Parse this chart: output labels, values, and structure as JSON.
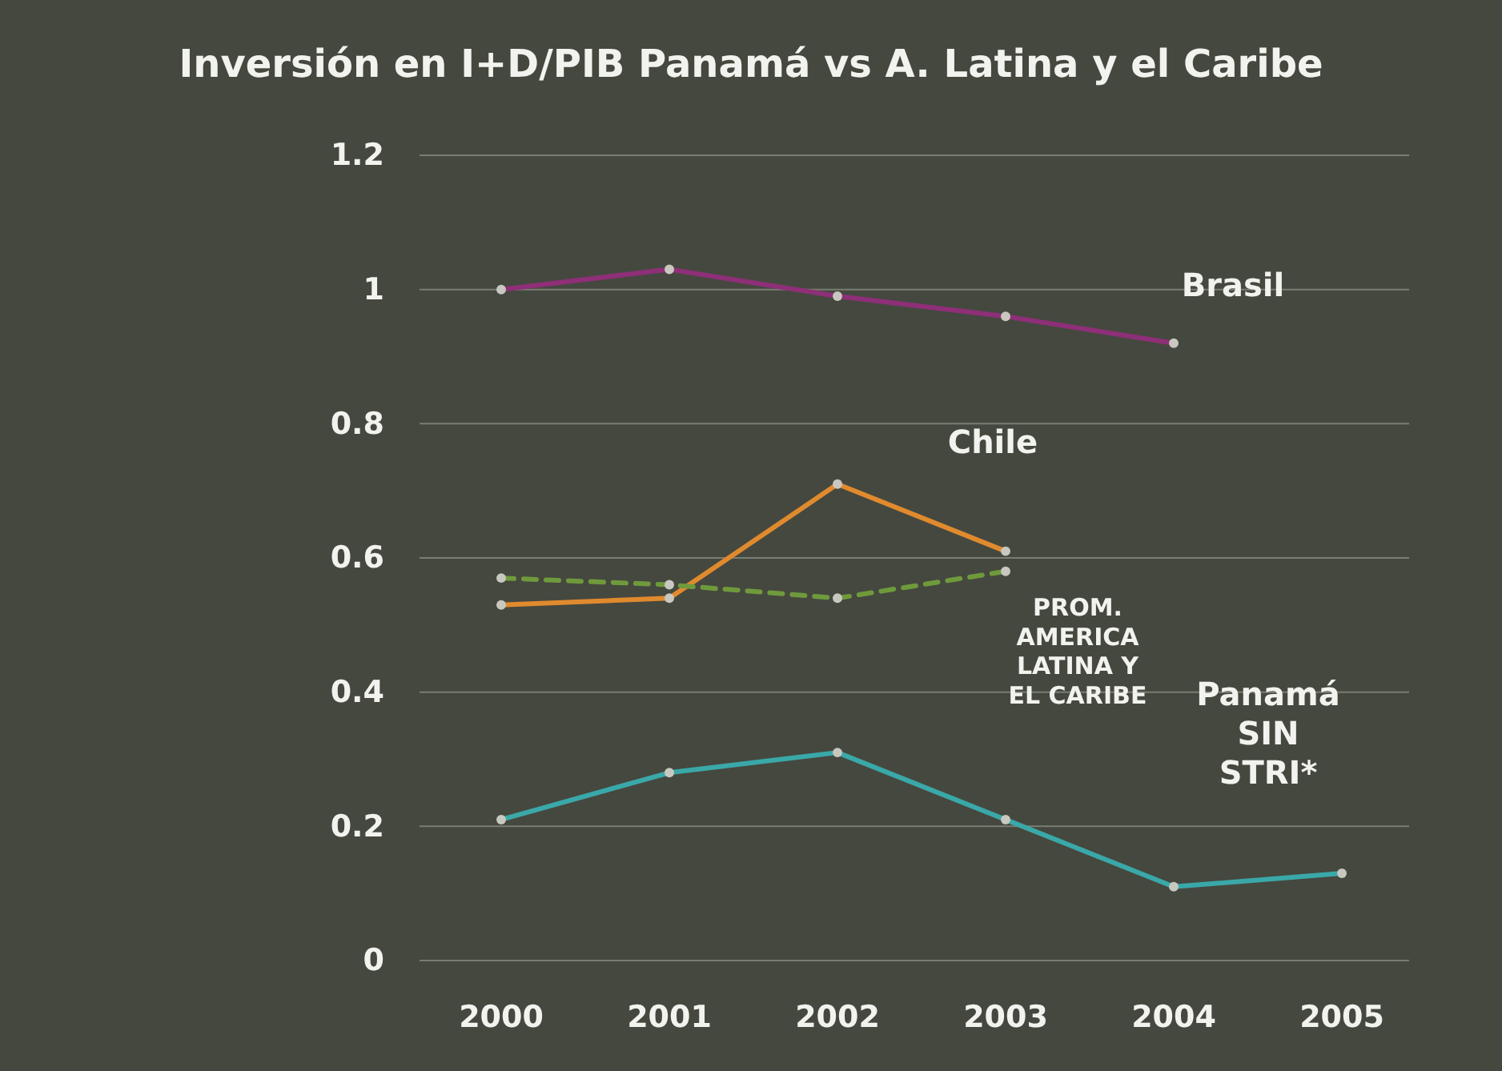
{
  "chart_data": {
    "type": "line",
    "title": "Inversión en I+D/PIB Panamá vs A. Latina y el Caribe",
    "categories": [
      "2000",
      "2001",
      "2002",
      "2003",
      "2004",
      "2005"
    ],
    "series": [
      {
        "name": "Brasil",
        "color": "#8e2f78",
        "values": [
          1.0,
          1.03,
          0.99,
          0.96,
          0.92,
          null
        ]
      },
      {
        "name": "Chile",
        "color": "#e08a2e",
        "values": [
          0.53,
          0.54,
          0.71,
          0.61,
          null,
          null
        ]
      },
      {
        "name": "PROM.\nAMERICA\nLATINA Y\nEL CARIBE",
        "color": "#6f9a3c",
        "line_style": "dashed",
        "values": [
          0.57,
          0.56,
          0.54,
          0.58,
          null,
          null
        ]
      },
      {
        "name": "Panamá\nSIN\nSTRI*",
        "color": "#3aa8a8",
        "values": [
          0.21,
          0.28,
          0.31,
          0.21,
          0.11,
          0.13
        ]
      }
    ],
    "ylim": [
      0,
      1.2
    ],
    "yticks": [
      0,
      0.2,
      0.4,
      0.6,
      0.8,
      1,
      1.2
    ],
    "grid": "y",
    "marker": "circle"
  }
}
